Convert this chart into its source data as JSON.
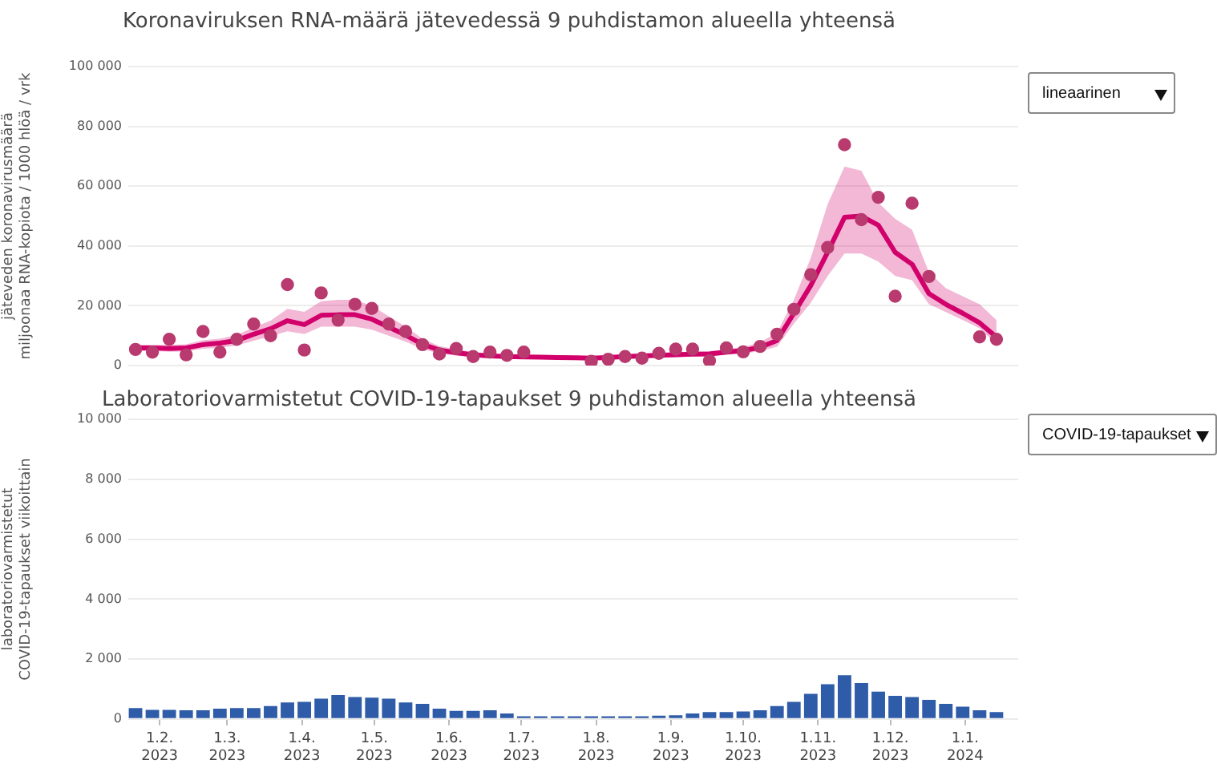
{
  "chart_data": [
    {
      "type": "line",
      "title": "Koronaviruksen RNA-määrä jätevedessä 9 puhdistamon alueella yhteensä",
      "ylabel": "jäteveden koronavirusmäärä\nmiljoonaa RNA-kopiota / 1000 hlöä / vrk",
      "annotations": [
        "lineaarinen"
      ],
      "x": [
        "2023-01-22",
        "2023-01-29",
        "2023-02-05",
        "2023-02-12",
        "2023-02-19",
        "2023-02-26",
        "2023-03-05",
        "2023-03-12",
        "2023-03-19",
        "2023-03-26",
        "2023-04-02",
        "2023-04-09",
        "2023-04-16",
        "2023-04-23",
        "2023-04-30",
        "2023-05-07",
        "2023-05-14",
        "2023-05-21",
        "2023-05-28",
        "2023-06-04",
        "2023-06-11",
        "2023-06-18",
        "2023-06-25",
        "2023-07-02",
        "2023-07-09",
        "2023-07-16",
        "2023-07-23",
        "2023-07-30",
        "2023-08-06",
        "2023-08-13",
        "2023-08-20",
        "2023-08-27",
        "2023-09-03",
        "2023-09-10",
        "2023-09-17",
        "2023-09-24",
        "2023-10-01",
        "2023-10-08",
        "2023-10-15",
        "2023-10-22",
        "2023-10-29",
        "2023-11-05",
        "2023-11-12",
        "2023-11-19",
        "2023-11-26",
        "2023-12-03",
        "2023-12-10",
        "2023-12-17",
        "2023-12-24",
        "2023-12-31",
        "2024-01-07",
        "2024-01-14"
      ],
      "series": [
        {
          "type": "line",
          "color": "#d1006a",
          "marker": "none",
          "values": [
            5900,
            5900,
            5700,
            5900,
            7000,
            7500,
            8400,
            10500,
            12300,
            15000,
            13700,
            16800,
            17000,
            17000,
            15500,
            12900,
            10200,
            7100,
            5200,
            4300,
            3600,
            3200,
            3000,
            2900,
            2800,
            2700,
            2600,
            2500,
            2700,
            3000,
            3200,
            3400,
            3600,
            3800,
            3900,
            4500,
            5000,
            6100,
            8400,
            17500,
            26800,
            37900,
            49600,
            50000,
            47000,
            37900,
            33900,
            24100,
            20500,
            17500,
            14300,
            9500
          ],
          "lower": [
            4800,
            4800,
            4600,
            4700,
            5600,
            6000,
            6700,
            8300,
            9800,
            11500,
            10500,
            13000,
            13000,
            13000,
            12000,
            10000,
            8000,
            5500,
            4000,
            3300,
            2800,
            2500,
            2300,
            2200,
            2100,
            2000,
            1900,
            1900,
            2100,
            2300,
            2500,
            2700,
            2800,
            3000,
            3000,
            3600,
            4000,
            4800,
            6300,
            14000,
            21000,
            30000,
            37500,
            37500,
            34800,
            30000,
            28600,
            20500,
            17900,
            15200,
            12500,
            7100
          ],
          "upper": [
            7000,
            7000,
            6900,
            7100,
            8500,
            9000,
            10200,
            12800,
            15000,
            19000,
            18000,
            21500,
            22000,
            22000,
            20000,
            16500,
            13000,
            9000,
            6500,
            5400,
            4500,
            4000,
            3800,
            3600,
            3500,
            3400,
            3300,
            3200,
            3400,
            3700,
            4000,
            4200,
            4500,
            4700,
            4800,
            5500,
            6200,
            7800,
            11000,
            22000,
            36000,
            54000,
            66600,
            65200,
            54500,
            49100,
            45500,
            31200,
            25900,
            23200,
            20500,
            15200
          ]
        },
        {
          "type": "scatter",
          "color": "#b83a6e",
          "marker": "circle",
          "values": [
            5400,
            4500,
            8800,
            3600,
            11400,
            4500,
            8800,
            13900,
            10000,
            27100,
            5200,
            24300,
            15200,
            20500,
            19100,
            13900,
            11400,
            7000,
            3900,
            5700,
            3000,
            4500,
            3400,
            4500,
            null,
            null,
            null,
            1400,
            2100,
            3000,
            2500,
            4100,
            5500,
            5500,
            1600,
            5900,
            4600,
            6400,
            10500,
            18800,
            30400,
            39500,
            73900,
            48800,
            56300,
            23200,
            54300,
            29800,
            null,
            null,
            9600,
            8800
          ]
        }
      ],
      "xlim": [
        "2023-01-19",
        "2024-01-23"
      ],
      "ylim": [
        0,
        100000
      ],
      "yticks": [
        {
          "value": 0,
          "label": "0"
        },
        {
          "value": 20000,
          "label": "20 000"
        },
        {
          "value": 40000,
          "label": "40 000"
        },
        {
          "value": 60000,
          "label": "60 000"
        },
        {
          "value": 80000,
          "label": "80 000"
        },
        {
          "value": 100000,
          "label": "100 000"
        }
      ],
      "tick_labels": "y",
      "grid": "y",
      "legend": false,
      "line_style": "solid"
    },
    {
      "type": "bar",
      "title": "Laboratoriovarmistetut COVID-19-tapaukset 9 puhdistamon alueella yhteensä",
      "ylabel": "laboratoriovarmistetut\nCOVID-19-tapaukset viikoittain",
      "annotations": [
        "COVID-19-tapaukset"
      ],
      "x": [
        "2023-01-22",
        "2023-01-29",
        "2023-02-05",
        "2023-02-12",
        "2023-02-19",
        "2023-02-26",
        "2023-03-05",
        "2023-03-12",
        "2023-03-19",
        "2023-03-26",
        "2023-04-02",
        "2023-04-09",
        "2023-04-16",
        "2023-04-23",
        "2023-04-30",
        "2023-05-07",
        "2023-05-14",
        "2023-05-21",
        "2023-05-28",
        "2023-06-04",
        "2023-06-11",
        "2023-06-18",
        "2023-06-25",
        "2023-07-02",
        "2023-07-09",
        "2023-07-16",
        "2023-07-23",
        "2023-07-30",
        "2023-08-06",
        "2023-08-13",
        "2023-08-20",
        "2023-08-27",
        "2023-09-03",
        "2023-09-10",
        "2023-09-17",
        "2023-09-24",
        "2023-10-01",
        "2023-10-08",
        "2023-10-15",
        "2023-10-22",
        "2023-10-29",
        "2023-11-05",
        "2023-11-12",
        "2023-11-19",
        "2023-11-26",
        "2023-12-03",
        "2023-12-10",
        "2023-12-17",
        "2023-12-24",
        "2023-12-31",
        "2024-01-07",
        "2024-01-14"
      ],
      "values": [
        360,
        300,
        300,
        290,
        290,
        340,
        360,
        360,
        430,
        550,
        570,
        680,
        800,
        730,
        710,
        680,
        550,
        500,
        340,
        270,
        270,
        290,
        180,
        90,
        90,
        90,
        90,
        90,
        90,
        90,
        90,
        110,
        120,
        180,
        230,
        230,
        250,
        290,
        430,
        570,
        840,
        1160,
        1460,
        1200,
        910,
        770,
        730,
        640,
        500,
        410,
        290,
        230
      ],
      "color": "#2f5ca8",
      "xlim": [
        "2023-01-19",
        "2024-01-23"
      ],
      "ylim": [
        0,
        10000
      ],
      "xticks": [
        {
          "value": "2023-02-01",
          "label": "1.2.\n2023"
        },
        {
          "value": "2023-03-01",
          "label": "1.3.\n2023"
        },
        {
          "value": "2023-04-01",
          "label": "1.4.\n2023"
        },
        {
          "value": "2023-05-01",
          "label": "1.5.\n2023"
        },
        {
          "value": "2023-06-01",
          "label": "1.6.\n2023"
        },
        {
          "value": "2023-07-01",
          "label": "1.7.\n2023"
        },
        {
          "value": "2023-08-01",
          "label": "1.8.\n2023"
        },
        {
          "value": "2023-09-01",
          "label": "1.9.\n2023"
        },
        {
          "value": "2023-10-01",
          "label": "1.10.\n2023"
        },
        {
          "value": "2023-11-01",
          "label": "1.11.\n2023"
        },
        {
          "value": "2023-12-01",
          "label": "1.12.\n2023"
        },
        {
          "value": "2024-01-01",
          "label": "1.1.\n2024"
        }
      ],
      "yticks": [
        {
          "value": 0,
          "label": "0"
        },
        {
          "value": 2000,
          "label": "2 000"
        },
        {
          "value": 4000,
          "label": "4 000"
        },
        {
          "value": 6000,
          "label": "6 000"
        },
        {
          "value": 8000,
          "label": "8 000"
        },
        {
          "value": 10000,
          "label": "10 000"
        }
      ],
      "grid": "y",
      "legend": false
    }
  ]
}
